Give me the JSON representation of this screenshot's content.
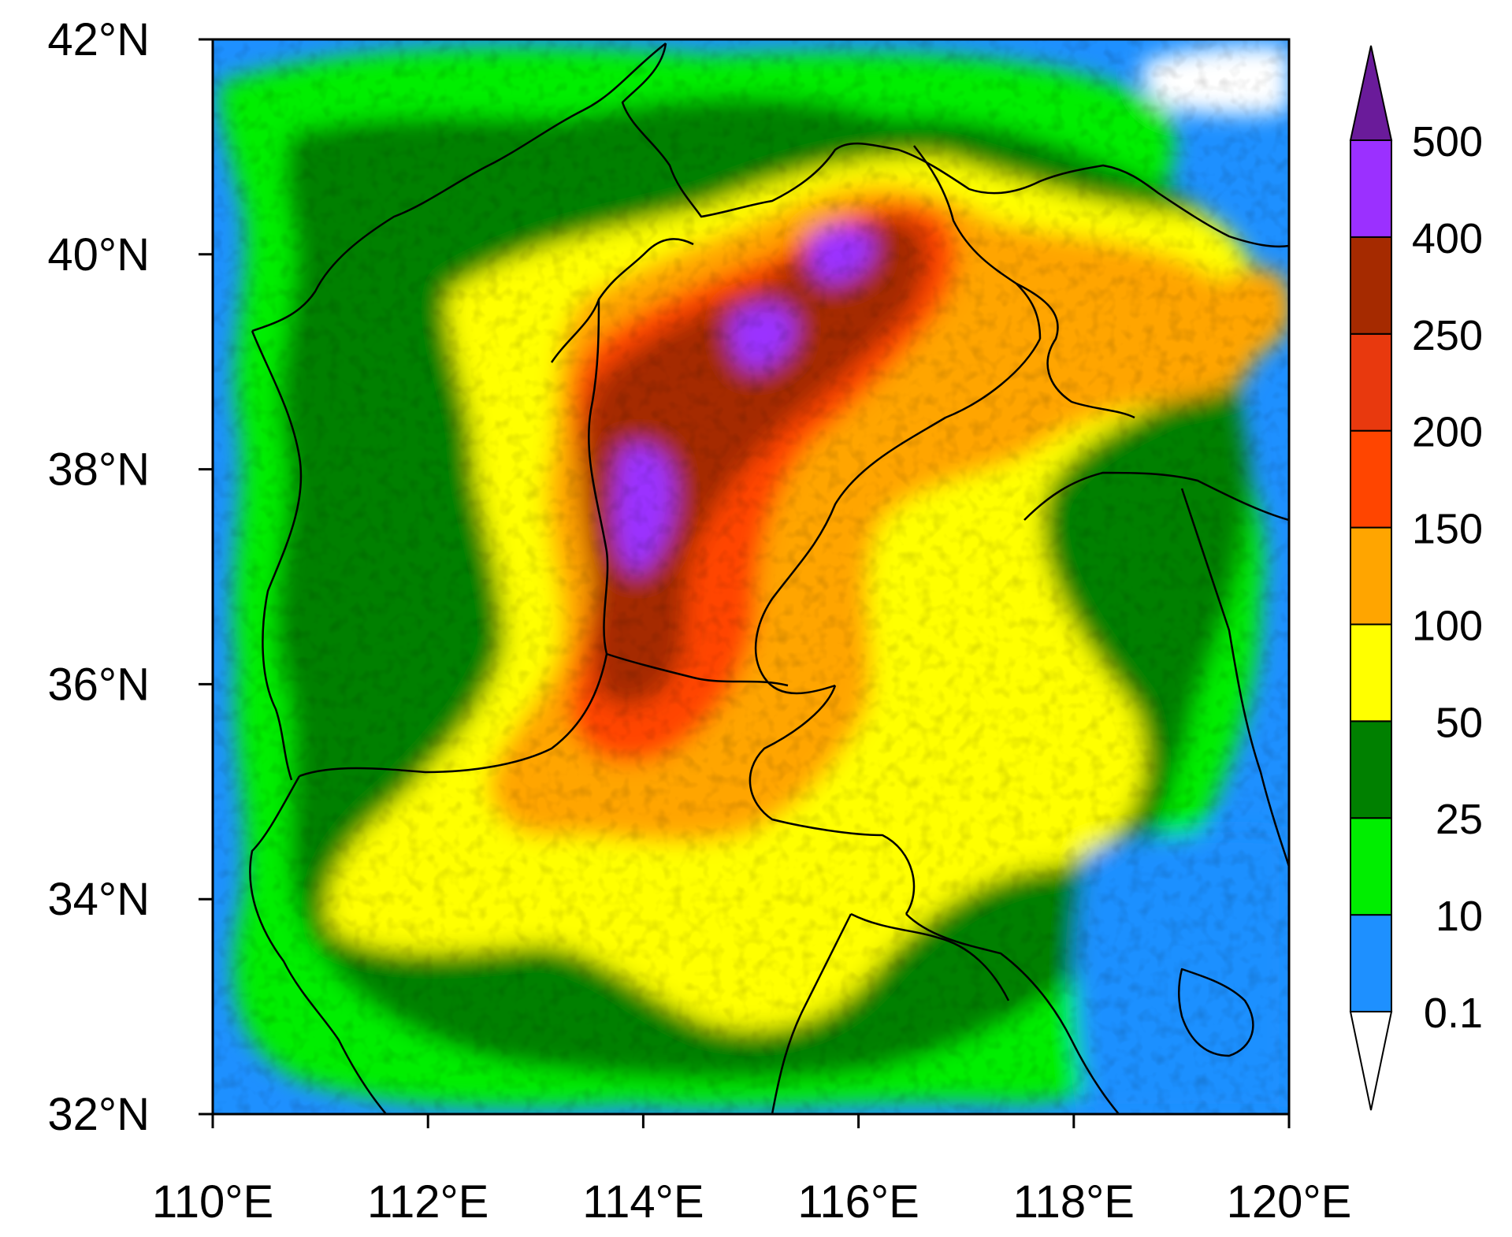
{
  "map": {
    "lon_range": [
      110,
      120
    ],
    "lat_range": [
      32,
      42
    ],
    "lon_ticks": [
      {
        "value": 110,
        "label": "110°E"
      },
      {
        "value": 112,
        "label": "112°E"
      },
      {
        "value": 114,
        "label": "114°E"
      },
      {
        "value": 116,
        "label": "116°E"
      },
      {
        "value": 118,
        "label": "118°E"
      },
      {
        "value": 120,
        "label": "120°E"
      }
    ],
    "lat_ticks": [
      {
        "value": 32,
        "label": "32°N"
      },
      {
        "value": 34,
        "label": "34°N"
      },
      {
        "value": 36,
        "label": "36°N"
      },
      {
        "value": 38,
        "label": "38°N"
      },
      {
        "value": 40,
        "label": "40°N"
      },
      {
        "value": 42,
        "label": "42°N"
      }
    ]
  },
  "colorbar": {
    "orientation": "vertical",
    "position": "right",
    "levels": [
      "0.1",
      "10",
      "25",
      "50",
      "100",
      "150",
      "200",
      "250",
      "400",
      "500"
    ],
    "colors": [
      "#ffffff",
      "#1e90ff",
      "#00ee00",
      "#008000",
      "#ffff00",
      "#ffa500",
      "#ff4500",
      "#e8390e",
      "#a52a00",
      "#9b30ff",
      "#6a1b9a"
    ]
  },
  "chart_data": {
    "type": "heatmap",
    "xlim": [
      110,
      120
    ],
    "ylim": [
      32,
      42
    ],
    "grid": false,
    "levels": [
      0.1,
      10,
      25,
      50,
      100,
      150,
      200,
      250,
      400,
      500
    ]
  }
}
